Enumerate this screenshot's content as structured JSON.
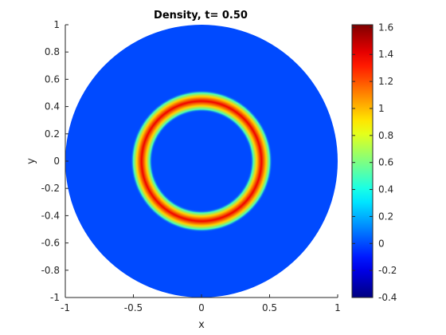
{
  "chart_data": {
    "type": "heatmap",
    "title": "Density, t=  0.50",
    "xlabel": "x",
    "ylabel": "y",
    "xlim": [
      -1,
      1
    ],
    "ylim": [
      -1,
      1
    ],
    "xticks": [
      -1,
      -0.5,
      0,
      0.5,
      1
    ],
    "xtick_labels": [
      "-1",
      "-0.5",
      "0",
      "0.5",
      "1"
    ],
    "yticks": [
      -1,
      -0.8,
      -0.6,
      -0.4,
      -0.2,
      0,
      0.2,
      0.4,
      0.6,
      0.8,
      1
    ],
    "ytick_labels": [
      "-1",
      "-0.8",
      "-0.6",
      "-0.4",
      "-0.2",
      "0",
      "0.2",
      "0.4",
      "0.6",
      "0.8",
      "1"
    ],
    "domain": "disk",
    "domain_radius": 1,
    "background_value": 0,
    "ring": {
      "inner_radius": 0.38,
      "outer_radius": 0.5,
      "peak_radius": 0.44,
      "peak_value": 1.4,
      "edge_value": 0.5
    },
    "colorbar": {
      "colormap": "jet",
      "clim": [
        -0.4,
        1.62
      ],
      "ticks": [
        -0.4,
        -0.2,
        0,
        0.2,
        0.4,
        0.6,
        0.8,
        1,
        1.2,
        1.4,
        1.6
      ],
      "tick_labels": [
        "-0.4",
        "-0.2",
        "0",
        "0.2",
        "0.4",
        "0.6",
        "0.8",
        "1",
        "1.2",
        "1.4",
        "1.6"
      ]
    }
  }
}
